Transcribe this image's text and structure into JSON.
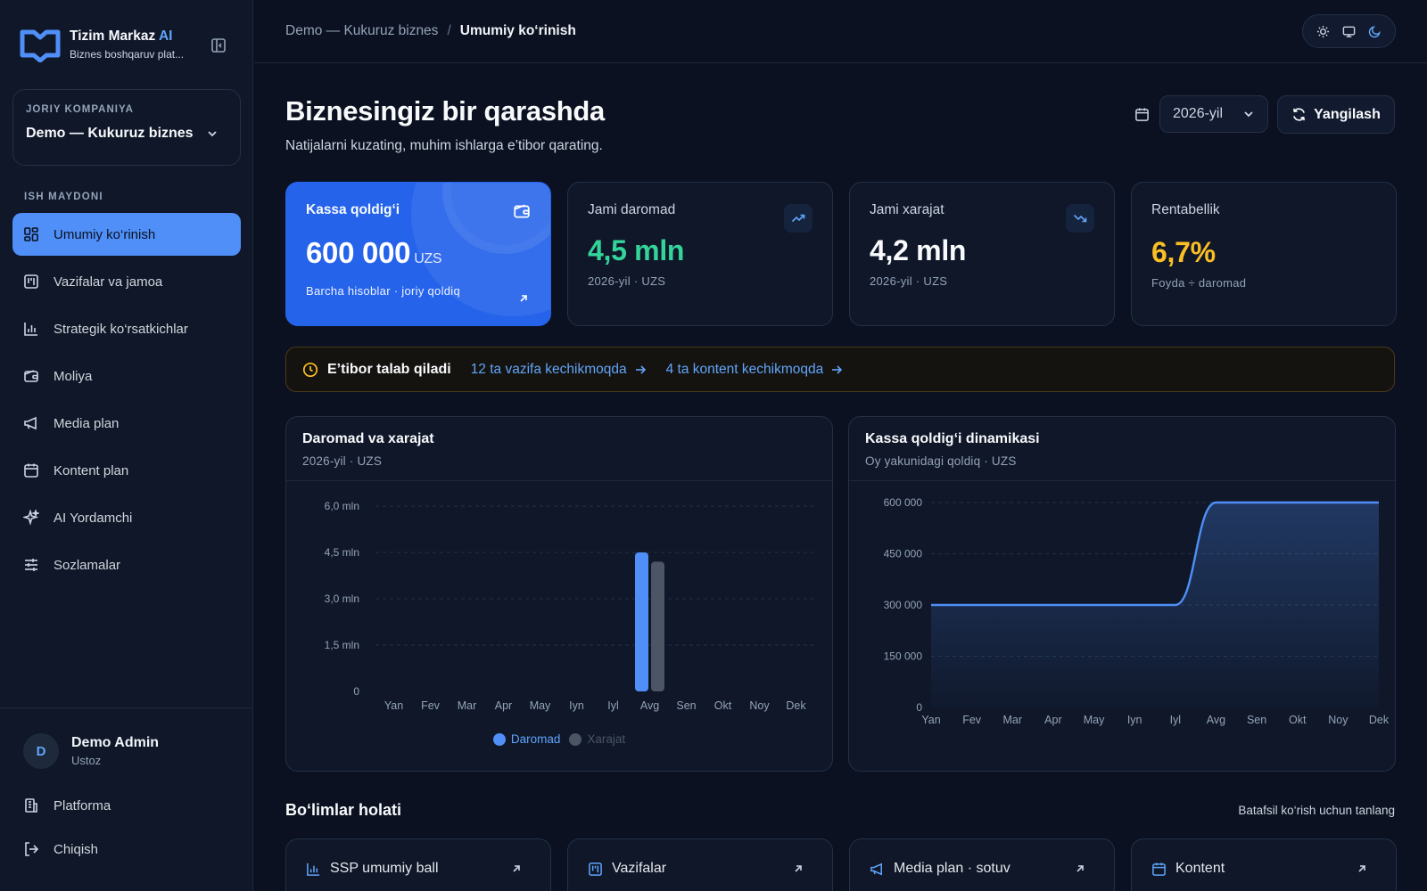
{
  "brand": {
    "title": "Tizim Markaz",
    "title_ai": "AI",
    "subtitle": "Biznes boshqaruv plat..."
  },
  "company": {
    "label": "JORIY KOMPANIYA",
    "value": "Demo — Kukuruz biznes"
  },
  "sidebar": {
    "section_label": "ISH MAYDONI",
    "items": [
      {
        "label": "Umumiy ko‘rinish",
        "icon": "dashboard-icon",
        "active": true
      },
      {
        "label": "Vazifalar va jamoa",
        "icon": "kanban-icon"
      },
      {
        "label": "Strategik ko‘rsatkichlar",
        "icon": "bar-chart-icon"
      },
      {
        "label": "Moliya",
        "icon": "wallet-icon"
      },
      {
        "label": "Media plan",
        "icon": "megaphone-icon"
      },
      {
        "label": "Kontent plan",
        "icon": "calendar-icon"
      },
      {
        "label": "AI Yordamchi",
        "icon": "sparkles-icon"
      },
      {
        "label": "Sozlamalar",
        "icon": "sliders-icon"
      }
    ],
    "user": {
      "initial": "D",
      "name": "Demo Admin",
      "role": "Ustoz"
    },
    "bottom": [
      {
        "label": "Platforma",
        "icon": "building-icon"
      },
      {
        "label": "Chiqish",
        "icon": "logout-icon"
      }
    ]
  },
  "breadcrumb": {
    "parent": "Demo — Kukuruz biznes",
    "separator": "/",
    "current": "Umumiy ko‘rinish"
  },
  "header": {
    "title": "Biznesingiz bir qarashda",
    "subtitle": "Natijalarni kuzating, muhim ishlarga e’tibor qarating.",
    "year_select": "2026-yil",
    "refresh_label": "Yangilash"
  },
  "kpis": {
    "cash": {
      "label": "Kassa qoldig‘i",
      "value": "600 000",
      "unit": "UZS",
      "meta": "Barcha hisoblar · joriy qoldiq"
    },
    "income": {
      "label": "Jami daromad",
      "value": "4,5 mln",
      "meta": "2026-yil · UZS"
    },
    "expense": {
      "label": "Jami xarajat",
      "value": "4,2 mln",
      "meta": "2026-yil · UZS"
    },
    "profitability": {
      "label": "Rentabellik",
      "value": "6,7%",
      "meta": "Foyda ÷ daromad"
    }
  },
  "attention": {
    "title": "E’tibor talab qiladi",
    "links": [
      "12 ta vazifa kechikmoqda",
      "4 ta kontent kechikmoqda"
    ]
  },
  "panels": {
    "income_expense": {
      "title": "Daromad va xarajat",
      "subtitle": "2026-yil · UZS"
    },
    "cash_dynamics": {
      "title": "Kassa qoldig‘i dinamikasi",
      "subtitle": "Oy yakunidagi qoldiq · UZS"
    }
  },
  "chart_data": [
    {
      "type": "bar",
      "categories": [
        "Yan",
        "Fev",
        "Mar",
        "Apr",
        "May",
        "Iyn",
        "Iyl",
        "Avg",
        "Sen",
        "Okt",
        "Noy",
        "Dek"
      ],
      "series": [
        {
          "name": "Daromad",
          "color": "#4f8ff7",
          "values": [
            0,
            0,
            0,
            0,
            0,
            0,
            0,
            4.5,
            0,
            0,
            0,
            0
          ]
        },
        {
          "name": "Xarajat",
          "color": "#4b5563",
          "values": [
            0,
            0,
            0,
            0,
            0,
            0,
            0,
            4.2,
            0,
            0,
            0,
            0
          ]
        }
      ],
      "ylim": [
        0,
        6
      ],
      "yticks": [
        0,
        1.5,
        3,
        4.5,
        6
      ],
      "ytick_labels": [
        "0",
        "1,5 mln",
        "3,0 mln",
        "4,5 mln",
        "6,0 mln"
      ],
      "grid": true,
      "legend": "bottom-center"
    },
    {
      "type": "area",
      "x": [
        "Yan",
        "Fev",
        "Mar",
        "Apr",
        "May",
        "Iyn",
        "Iyl",
        "Avg",
        "Sen",
        "Okt",
        "Noy",
        "Dek"
      ],
      "values": [
        300000,
        300000,
        300000,
        300000,
        300000,
        300000,
        300000,
        600000,
        600000,
        600000,
        600000,
        600000
      ],
      "color": "#4f8ff7",
      "ylim": [
        0,
        600000
      ],
      "yticks": [
        0,
        150000,
        300000,
        450000,
        600000
      ],
      "ytick_labels": [
        "0",
        "150 000",
        "300 000",
        "450 000",
        "600 000"
      ],
      "grid": true
    }
  ],
  "sections": {
    "title": "Bo‘limlar holati",
    "hint": "Batafsil ko‘rish uchun tanlang",
    "cards": [
      {
        "label": "SSP umumiy ball",
        "icon": "bar-chart-icon"
      },
      {
        "label": "Vazifalar",
        "icon": "kanban-icon"
      },
      {
        "label": "Media plan · sotuv",
        "icon": "megaphone-icon"
      },
      {
        "label": "Kontent",
        "icon": "calendar-icon"
      }
    ]
  },
  "colors": {
    "accent": "#4f8ff7",
    "income": "#34d399",
    "profit": "#fbbf24",
    "background": "#0b1120"
  }
}
